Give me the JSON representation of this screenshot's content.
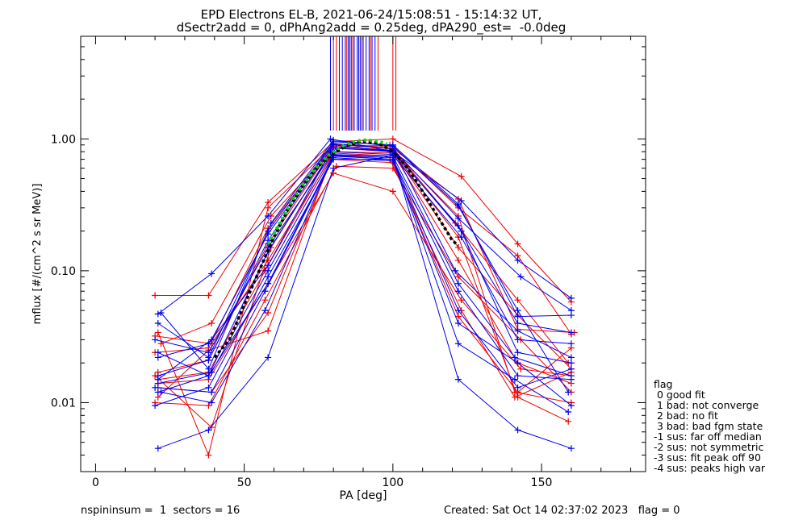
{
  "header": {
    "title_line1": "EPD Electrons EL-B, 2021-06-24/15:08:51 - 15:14:32 UT,",
    "title_line2": "dSectr2add = 0, dPhAng2add = 0.25deg, dPA290_est=  -0.0deg"
  },
  "footer": {
    "left": "nspininsum =  1  sectors = 16",
    "right": "Created: Sat Oct 14 02:37:02 2023   flag = 0"
  },
  "legend": {
    "title": "flag",
    "items": [
      " 0 good fit",
      " 1 bad: not converge",
      " 2 bad: no fit",
      " 3 bad: bad fgm state",
      "-1 sus: far off median",
      "-2 sus: not symmetric",
      "-3 sus: fit peak off 90",
      "-4 sus: peaks high var"
    ]
  },
  "colors": {
    "red": "#ee0000",
    "blue": "#0000ee",
    "fit_green": "#00dd00",
    "fit_black": "#000000"
  },
  "chart_data": {
    "type": "line",
    "title": "EPD Electrons EL-B, 2021-06-24/15:08:51 - 15:14:32 UT,",
    "xlabel": "PA [deg]",
    "ylabel": "mflux [#/(cm^2 s sr MeV)]",
    "xlim": [
      -5,
      185
    ],
    "ylim": [
      0.003,
      6.0
    ],
    "yscale": "log",
    "x_ticks": [
      0,
      50,
      100,
      150
    ],
    "y_ticks": [
      0.01,
      0.1,
      1.0
    ],
    "y_tick_labels": [
      "0.01",
      "0.10",
      "1.00"
    ],
    "grid": false,
    "marker": "+",
    "series": [
      {
        "color": "red",
        "x": [
          20,
          38,
          58,
          80,
          100,
          123,
          142,
          160
        ],
        "y": [
          0.065,
          0.065,
          0.33,
          0.95,
          1.0,
          0.52,
          0.16,
          0.058
        ]
      },
      {
        "color": "red",
        "x": [
          21,
          38,
          58,
          80,
          100,
          122,
          142,
          160
        ],
        "y": [
          0.034,
          0.004,
          0.3,
          0.9,
          0.88,
          0.3,
          0.13,
          0.033
        ]
      },
      {
        "color": "red",
        "x": [
          20,
          39,
          59,
          80,
          100,
          122,
          142,
          159
        ],
        "y": [
          0.016,
          0.0065,
          0.15,
          0.85,
          0.8,
          0.18,
          0.011,
          0.0072
        ]
      },
      {
        "color": "red",
        "x": [
          21,
          39,
          58,
          80,
          99,
          123,
          141,
          160
        ],
        "y": [
          0.013,
          0.012,
          0.048,
          0.75,
          0.7,
          0.05,
          0.011,
          0.017
        ]
      },
      {
        "color": "red",
        "x": [
          21,
          38,
          58,
          79,
          100,
          122,
          142,
          160
        ],
        "y": [
          0.011,
          0.025,
          0.035,
          0.7,
          0.66,
          0.045,
          0.012,
          0.026
        ]
      },
      {
        "color": "red",
        "x": [
          20,
          38,
          58,
          80,
          100,
          122,
          142,
          161
        ],
        "y": [
          0.024,
          0.026,
          0.21,
          0.92,
          0.85,
          0.35,
          0.036,
          0.034
        ]
      },
      {
        "color": "red",
        "x": [
          21,
          38,
          57,
          80,
          100,
          122,
          142,
          160
        ],
        "y": [
          0.015,
          0.017,
          0.1,
          0.8,
          0.78,
          0.12,
          0.02,
          0.014
        ]
      },
      {
        "color": "red",
        "x": [
          22,
          39,
          59,
          80,
          99,
          121,
          142,
          159
        ],
        "y": [
          0.028,
          0.04,
          0.26,
          0.85,
          0.9,
          0.23,
          0.06,
          0.02
        ]
      },
      {
        "color": "red",
        "x": [
          20,
          38,
          57,
          81,
          100,
          122,
          143,
          160
        ],
        "y": [
          0.01,
          0.0095,
          0.06,
          0.62,
          0.6,
          0.09,
          0.03,
          0.012
        ]
      },
      {
        "color": "red",
        "x": [
          21,
          38,
          58,
          80,
          100,
          122,
          141,
          160
        ],
        "y": [
          0.017,
          0.021,
          0.16,
          0.88,
          0.82,
          0.26,
          0.012,
          0.01
        ]
      },
      {
        "color": "red",
        "x": [
          20,
          39,
          58,
          80,
          101,
          122,
          142,
          160
        ],
        "y": [
          0.032,
          0.028,
          0.12,
          0.78,
          0.74,
          0.15,
          0.046,
          0.018
        ]
      },
      {
        "color": "red",
        "x": [
          21,
          38,
          58,
          80,
          100,
          123,
          143,
          160
        ],
        "y": [
          0.014,
          0.015,
          0.08,
          0.55,
          0.4,
          0.06,
          0.018,
          0.016
        ]
      },
      {
        "color": "blue",
        "x": [
          21,
          39,
          58,
          79,
          100,
          123,
          142,
          160
        ],
        "y": [
          0.047,
          0.095,
          0.26,
          1.0,
          0.8,
          0.34,
          0.12,
          0.062
        ]
      },
      {
        "color": "blue",
        "x": [
          21,
          38,
          58,
          80,
          100,
          122,
          142,
          160
        ],
        "y": [
          0.0045,
          0.0062,
          0.022,
          0.6,
          0.75,
          0.015,
          0.0062,
          0.0045
        ]
      },
      {
        "color": "blue",
        "x": [
          21,
          38,
          58,
          80,
          100,
          122,
          142,
          160
        ],
        "y": [
          0.04,
          0.022,
          0.2,
          0.95,
          0.9,
          0.32,
          0.045,
          0.046
        ]
      },
      {
        "color": "blue",
        "x": [
          22,
          39,
          57,
          80,
          100,
          122,
          141,
          159
        ],
        "y": [
          0.012,
          0.01,
          0.05,
          0.75,
          0.72,
          0.028,
          0.015,
          0.0085
        ]
      },
      {
        "color": "blue",
        "x": [
          21,
          38,
          58,
          80,
          100,
          123,
          142,
          160
        ],
        "y": [
          0.024,
          0.016,
          0.14,
          0.85,
          0.82,
          0.2,
          0.024,
          0.02
        ]
      },
      {
        "color": "blue",
        "x": [
          20,
          38,
          58,
          80,
          100,
          122,
          142,
          160
        ],
        "y": [
          0.0095,
          0.013,
          0.09,
          0.7,
          0.7,
          0.07,
          0.016,
          0.015
        ]
      },
      {
        "color": "blue",
        "x": [
          21,
          39,
          58,
          80,
          100,
          122,
          143,
          160
        ],
        "y": [
          0.015,
          0.03,
          0.19,
          0.92,
          0.84,
          0.25,
          0.09,
          0.05
        ]
      },
      {
        "color": "blue",
        "x": [
          21,
          38,
          58,
          79,
          101,
          121,
          142,
          160
        ],
        "y": [
          0.022,
          0.028,
          0.11,
          0.8,
          0.76,
          0.1,
          0.035,
          0.022
        ]
      },
      {
        "color": "blue",
        "x": [
          22,
          38,
          59,
          80,
          100,
          122,
          142,
          159
        ],
        "y": [
          0.048,
          0.018,
          0.23,
          0.98,
          0.88,
          0.31,
          0.05,
          0.012
        ]
      },
      {
        "color": "blue",
        "x": [
          20,
          39,
          57,
          80,
          100,
          122,
          142,
          160
        ],
        "y": [
          0.013,
          0.012,
          0.07,
          0.72,
          0.68,
          0.04,
          0.02,
          0.0095
        ]
      },
      {
        "color": "blue",
        "x": [
          21,
          38,
          58,
          80,
          100,
          122,
          142,
          160
        ],
        "y": [
          0.016,
          0.021,
          0.17,
          0.9,
          0.8,
          0.22,
          0.04,
          0.034
        ]
      },
      {
        "color": "blue",
        "x": [
          21,
          38,
          58,
          80,
          100,
          122,
          142,
          160
        ],
        "y": [
          0.012,
          0.016,
          0.08,
          0.74,
          0.7,
          0.05,
          0.013,
          0.018
        ]
      },
      {
        "color": "blue",
        "x": [
          20,
          38,
          58,
          81,
          99,
          123,
          142,
          160
        ],
        "y": [
          0.03,
          0.024,
          0.15,
          0.86,
          0.8,
          0.18,
          0.03,
          0.028
        ]
      },
      {
        "color": "blue",
        "x": [
          21,
          39,
          58,
          80,
          100,
          122,
          141,
          160
        ],
        "y": [
          0.014,
          0.017,
          0.1,
          0.76,
          0.74,
          0.08,
          0.022,
          0.016
        ]
      }
    ],
    "fit_curve": {
      "x": [
        40,
        45,
        50,
        55,
        60,
        65,
        70,
        75,
        80,
        85,
        90,
        95,
        100,
        105,
        110,
        115,
        120,
        122
      ],
      "y": [
        0.022,
        0.03,
        0.055,
        0.1,
        0.18,
        0.3,
        0.45,
        0.62,
        0.78,
        0.9,
        0.96,
        0.93,
        0.8,
        0.6,
        0.4,
        0.26,
        0.17,
        0.155
      ]
    },
    "green_fit": {
      "x": [
        58,
        62,
        66,
        70,
        74,
        78,
        82,
        86,
        90,
        94,
        98
      ],
      "y": [
        0.16,
        0.23,
        0.34,
        0.46,
        0.6,
        0.74,
        0.86,
        0.94,
        0.98,
        0.97,
        0.92
      ]
    },
    "vertical_lines": {
      "blue_x": [
        79,
        82,
        83,
        84,
        85,
        85.5,
        86,
        87,
        88,
        88.5,
        89,
        90,
        91,
        92,
        93,
        94
      ],
      "red_x": [
        80,
        81,
        84.5,
        86.5,
        89.5,
        92.5,
        95,
        100,
        101
      ]
    }
  }
}
